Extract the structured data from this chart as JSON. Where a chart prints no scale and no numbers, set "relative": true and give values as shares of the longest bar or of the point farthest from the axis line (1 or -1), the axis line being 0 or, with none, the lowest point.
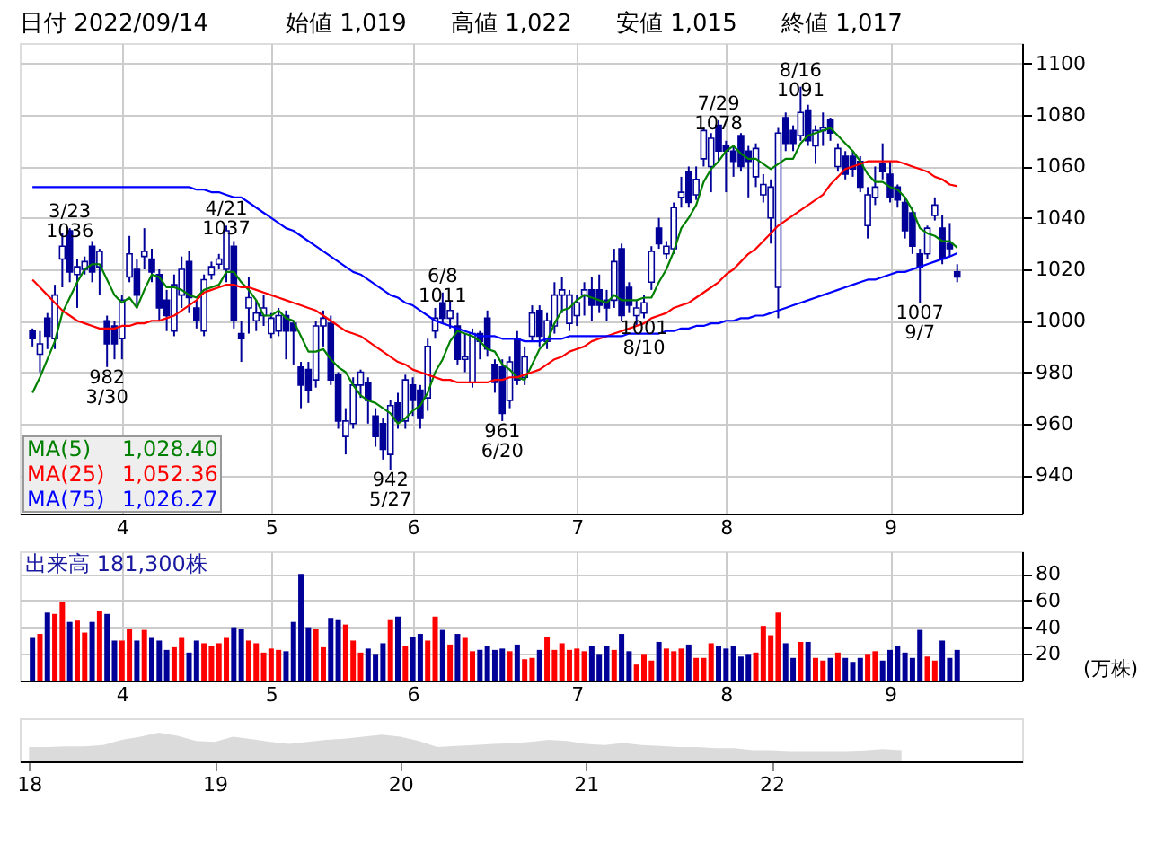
{
  "chart_data": [
    {
      "type": "candlestick",
      "color": "#000099",
      "grid": true,
      "legend": "bottom left",
      "ylim": [
        925,
        1108
      ],
      "yticks": [
        940,
        960,
        980,
        1000,
        1020,
        1040,
        1060,
        1080,
        1100
      ],
      "annotations": [
        "日付 2022/09/14",
        "始値 1,019",
        "高値 1,022",
        "安値 1,015",
        "終値 1,017",
        "1,028.40",
        "1,052.36",
        "1,026.27",
        {
          "text": "3/23\n1036",
          "y": 1036
        },
        {
          "text": "982\n3/30",
          "y": 982
        },
        {
          "text": "4/21\n1037",
          "y": 1037
        },
        {
          "text": "942\n5/27",
          "y": 942
        },
        {
          "text": "6/8\n1011",
          "y": 1011
        },
        {
          "text": "961\n6/20",
          "y": 961
        },
        {
          "text": "7/29\n1078",
          "y": 1078
        },
        {
          "text": "1001\n8/10",
          "y": 1001
        },
        {
          "text": "8/16\n1091",
          "y": 1091
        },
        {
          "text": "1007\n9/7",
          "y": 1007
        }
      ],
      "categories": [
        null,
        null,
        null,
        null,
        null,
        null,
        null,
        null,
        null,
        null,
        null,
        null,
        "4",
        null,
        null,
        null,
        null,
        null,
        null,
        null,
        null,
        null,
        null,
        null,
        null,
        null,
        null,
        null,
        null,
        null,
        null,
        null,
        "5",
        null,
        null,
        null,
        null,
        null,
        null,
        null,
        null,
        null,
        null,
        null,
        null,
        null,
        null,
        null,
        null,
        null,
        null,
        "6",
        null,
        null,
        null,
        null,
        null,
        null,
        null,
        null,
        null,
        null,
        null,
        null,
        null,
        null,
        null,
        null,
        null,
        null,
        null,
        null,
        null,
        "7",
        null,
        null,
        null,
        null,
        null,
        null,
        null,
        null,
        null,
        null,
        null,
        null,
        null,
        null,
        null,
        null,
        null,
        null,
        null,
        "8",
        null,
        null,
        null,
        null,
        null,
        null,
        null,
        null,
        null,
        null,
        null,
        null,
        null,
        null,
        null,
        null,
        null,
        null,
        null,
        null,
        null,
        "9",
        null,
        null,
        null,
        null,
        null,
        null,
        null,
        null,
        null
      ],
      "ohlc": [
        [
          996,
          997,
          990,
          993
        ],
        [
          987,
          996,
          980,
          991
        ],
        [
          1001,
          1003,
          989,
          994
        ],
        [
          993,
          1014,
          989,
          1010
        ],
        [
          1024,
          1034,
          1013,
          1029
        ],
        [
          1035,
          1036,
          1015,
          1019
        ],
        [
          1018,
          1024,
          1005,
          1021
        ],
        [
          1020,
          1025,
          1018,
          1023
        ],
        [
          1029,
          1031,
          1015,
          1019
        ],
        [
          1021,
          1028,
          1010,
          1027
        ],
        [
          1000,
          1002,
          982,
          991
        ],
        [
          998,
          1000,
          985,
          991
        ],
        [
          993,
          1010,
          985,
          1008
        ],
        [
          1017,
          1033,
          1015,
          1026
        ],
        [
          1020,
          1024,
          1005,
          1010
        ],
        [
          1025,
          1036,
          1020,
          1027
        ],
        [
          1024,
          1028,
          1015,
          1019
        ],
        [
          1018,
          1020,
          1000,
          1005
        ],
        [
          1008,
          1012,
          996,
          1002
        ],
        [
          996,
          1018,
          994,
          1014
        ],
        [
          1010,
          1025,
          1005,
          1020
        ],
        [
          1023,
          1027,
          1003,
          1009
        ],
        [
          1005,
          1008,
          997,
          1000
        ],
        [
          996,
          1018,
          994,
          1016
        ],
        [
          1018,
          1023,
          1016,
          1021
        ],
        [
          1022,
          1026,
          1020,
          1024
        ],
        [
          1020,
          1037,
          1015,
          1035
        ],
        [
          1029,
          1031,
          997,
          1000
        ],
        [
          995,
          1000,
          984,
          993
        ],
        [
          1005,
          1017,
          995,
          1009
        ],
        [
          1000,
          1008,
          996,
          1003
        ],
        [
          1002,
          1010,
          998,
          1005
        ],
        [
          995,
          1003,
          993,
          1001
        ],
        [
          996,
          1005,
          994,
          1002
        ],
        [
          1002,
          1004,
          985,
          996
        ],
        [
          999,
          1000,
          983,
          996
        ],
        [
          982,
          984,
          966,
          975
        ],
        [
          981,
          984,
          968,
          973
        ],
        [
          977,
          1000,
          974,
          998
        ],
        [
          998,
          1004,
          990,
          1001
        ],
        [
          999,
          1002,
          975,
          977
        ],
        [
          979,
          980,
          958,
          961
        ],
        [
          955,
          966,
          948,
          961
        ],
        [
          960,
          978,
          958,
          975
        ],
        [
          975,
          981,
          970,
          980
        ],
        [
          976,
          978,
          960,
          969
        ],
        [
          963,
          966,
          951,
          955
        ],
        [
          960,
          962,
          946,
          950
        ],
        [
          948,
          969,
          942,
          967
        ],
        [
          968,
          972,
          958,
          961
        ],
        [
          961,
          979,
          958,
          977
        ],
        [
          975,
          978,
          963,
          969
        ],
        [
          973,
          975,
          958,
          962
        ],
        [
          970,
          993,
          965,
          990
        ],
        [
          996,
          1005,
          993,
          1001
        ],
        [
          1007,
          1011,
          999,
          1001
        ],
        [
          1001,
          1008,
          997,
          1004
        ],
        [
          998,
          1003,
          983,
          985
        ],
        [
          985,
          995,
          980,
          986
        ],
        [
          976,
          997,
          974,
          995
        ],
        [
          995,
          996,
          985,
          992
        ],
        [
          1001,
          1004,
          986,
          989
        ],
        [
          983,
          985,
          972,
          976
        ],
        [
          982,
          985,
          961,
          964
        ],
        [
          969,
          986,
          966,
          984
        ],
        [
          993,
          996,
          975,
          977
        ],
        [
          978,
          990,
          975,
          986
        ],
        [
          994,
          1006,
          992,
          1003
        ],
        [
          1004,
          1006,
          990,
          994
        ],
        [
          992,
          1003,
          989,
          1000
        ],
        [
          998,
          1015,
          995,
          1010
        ],
        [
          1010,
          1017,
          1003,
          1012
        ],
        [
          999,
          1012,
          996,
          1010
        ],
        [
          1002,
          1010,
          998,
          1007
        ],
        [
          1010,
          1015,
          1002,
          1012
        ],
        [
          1012,
          1017,
          1000,
          1006
        ],
        [
          1012,
          1018,
          1003,
          1006
        ],
        [
          1008,
          1012,
          1000,
          1005
        ],
        [
          1008,
          1028,
          1005,
          1023
        ],
        [
          1028,
          1030,
          1000,
          1002
        ],
        [
          1013,
          1015,
          1003,
          1006
        ],
        [
          1002,
          1008,
          998,
          1005
        ],
        [
          1003,
          1010,
          1001,
          1007
        ],
        [
          1015,
          1029,
          1012,
          1027
        ],
        [
          1036,
          1040,
          1028,
          1030
        ],
        [
          1026,
          1031,
          1024,
          1029
        ],
        [
          1028,
          1046,
          1026,
          1044
        ],
        [
          1048,
          1056,
          1044,
          1050
        ],
        [
          1058,
          1060,
          1044,
          1046
        ],
        [
          1049,
          1060,
          1047,
          1055
        ],
        [
          1063,
          1075,
          1060,
          1074
        ],
        [
          1060,
          1073,
          1050,
          1071
        ],
        [
          1076,
          1078,
          1062,
          1066
        ],
        [
          1068,
          1070,
          1050,
          1066
        ],
        [
          1066,
          1068,
          1056,
          1062
        ],
        [
          1072,
          1073,
          1058,
          1060
        ],
        [
          1066,
          1068,
          1048,
          1062
        ],
        [
          1056,
          1069,
          1052,
          1067
        ],
        [
          1049,
          1057,
          1046,
          1053
        ],
        [
          1040,
          1055,
          1030,
          1052
        ],
        [
          1013,
          1075,
          1001,
          1073
        ],
        [
          1079,
          1081,
          1066,
          1069
        ],
        [
          1074,
          1076,
          1066,
          1069
        ],
        [
          1072,
          1091,
          1070,
          1081
        ],
        [
          1082,
          1084,
          1068,
          1070
        ],
        [
          1068,
          1076,
          1061,
          1074
        ],
        [
          1074,
          1081,
          1068,
          1075
        ],
        [
          1078,
          1079,
          1070,
          1073
        ],
        [
          1060,
          1069,
          1058,
          1067
        ],
        [
          1064,
          1066,
          1055,
          1057
        ],
        [
          1064,
          1066,
          1056,
          1059
        ],
        [
          1062,
          1064,
          1050,
          1052
        ],
        [
          1037,
          1052,
          1032,
          1049
        ],
        [
          1048,
          1060,
          1045,
          1052
        ],
        [
          1061,
          1069,
          1055,
          1058
        ],
        [
          1057,
          1062,
          1046,
          1048
        ],
        [
          1052,
          1053,
          1044,
          1047
        ],
        [
          1046,
          1048,
          1032,
          1035
        ],
        [
          1042,
          1044,
          1026,
          1029
        ],
        [
          1026,
          1028,
          1007,
          1021
        ],
        [
          1026,
          1037,
          1024,
          1036
        ],
        [
          1041,
          1048,
          1039,
          1045
        ],
        [
          1036,
          1041,
          1022,
          1024
        ],
        [
          1030,
          1038,
          1025,
          1028
        ],
        [
          1019,
          1022,
          1015,
          1017
        ]
      ],
      "series": [
        {
          "name": "MA(5)",
          "type": "line",
          "color": "#008000",
          "values": [
            972,
            978,
            985,
            992,
            1003,
            1009,
            1015,
            1020,
            1022,
            1022,
            1016,
            1010,
            1007,
            1009,
            1005,
            1012,
            1018,
            1017,
            1013,
            1013,
            1012,
            1010,
            1009,
            1012,
            1013,
            1014,
            1019,
            1019,
            1015,
            1012,
            1008,
            1002,
            1002,
            1004,
            1001,
            1000,
            994,
            988,
            988,
            989,
            985,
            982,
            980,
            975,
            971,
            969,
            968,
            966,
            964,
            960,
            962,
            965,
            967,
            972,
            980,
            985,
            992,
            996,
            995,
            994,
            992,
            989,
            988,
            983,
            981,
            978,
            977,
            983,
            989,
            992,
            999,
            1004,
            1005,
            1008,
            1010,
            1009,
            1008,
            1007,
            1010,
            1008,
            1008,
            1008,
            1009,
            1009,
            1015,
            1020,
            1027,
            1036,
            1040,
            1045,
            1054,
            1059,
            1062,
            1066,
            1068,
            1065,
            1063,
            1063,
            1061,
            1059,
            1061,
            1063,
            1063,
            1069,
            1072,
            1073,
            1074,
            1075,
            1072,
            1069,
            1066,
            1062,
            1057,
            1054,
            1054,
            1052,
            1051,
            1048,
            1043,
            1036,
            1034,
            1033,
            1031,
            1031,
            1028.4
          ]
        },
        {
          "name": "MA(25)",
          "type": "line",
          "color": "#ff0000",
          "values": [
            1016,
            1013,
            1010,
            1007,
            1004,
            1002,
            1000,
            999,
            998,
            997,
            997,
            997,
            998,
            998,
            999,
            999,
            1000,
            1000,
            1001,
            1002,
            1004,
            1006,
            1008,
            1011,
            1012,
            1013,
            1014,
            1014,
            1013,
            1013,
            1012,
            1011,
            1010,
            1009,
            1008,
            1007,
            1006,
            1005,
            1004,
            1002,
            1000,
            998,
            996,
            995,
            994,
            992,
            990,
            988,
            986,
            984,
            983,
            981,
            980,
            979,
            978,
            977,
            977,
            976,
            976,
            976,
            976,
            976,
            977,
            977,
            978,
            978,
            979,
            980,
            981,
            983,
            985,
            986,
            988,
            989,
            990,
            992,
            993,
            994,
            995,
            996,
            997,
            998,
            999,
            1001,
            1002,
            1003,
            1005,
            1006,
            1007,
            1009,
            1011,
            1013,
            1015,
            1018,
            1020,
            1023,
            1026,
            1028,
            1031,
            1034,
            1037,
            1039,
            1041,
            1043,
            1045,
            1047,
            1049,
            1053,
            1056,
            1059,
            1060,
            1061,
            1062,
            1062,
            1062,
            1062,
            1062,
            1061,
            1060,
            1059,
            1058,
            1056,
            1055,
            1053,
            1052.36
          ]
        },
        {
          "name": "MA(75)",
          "type": "line",
          "color": "#0000ff",
          "values": [
            1052,
            1052,
            1052,
            1052,
            1052,
            1052,
            1052,
            1052,
            1052,
            1052,
            1052,
            1052,
            1052,
            1052,
            1052,
            1052,
            1052,
            1052,
            1052,
            1052,
            1052,
            1052,
            1051,
            1051,
            1050,
            1050,
            1049,
            1048,
            1048,
            1046,
            1044,
            1042,
            1040,
            1038,
            1036,
            1035,
            1033,
            1031,
            1029,
            1027,
            1025,
            1023,
            1021,
            1019,
            1018,
            1016,
            1014,
            1012,
            1010,
            1009,
            1007,
            1006,
            1004,
            1002,
            1000,
            999,
            998,
            997,
            996,
            995,
            994,
            994,
            994,
            993,
            993,
            993,
            992,
            992,
            992,
            993,
            993,
            993,
            994,
            994,
            994,
            994,
            994,
            994,
            994,
            994,
            995,
            995,
            995,
            995,
            995,
            996,
            996,
            997,
            997,
            998,
            998,
            999,
            999,
            1000,
            1000,
            1001,
            1001,
            1002,
            1002,
            1003,
            1004,
            1005,
            1006,
            1007,
            1008,
            1009,
            1010,
            1011,
            1012,
            1013,
            1014,
            1015,
            1016,
            1016,
            1017,
            1018,
            1019,
            1019,
            1020,
            1021,
            1022,
            1023,
            1024,
            1025,
            1026.27
          ]
        }
      ]
    },
    {
      "type": "bar",
      "title": "出来高 181,300株",
      "ylabel": "(万株)",
      "grid": true,
      "ylim": [
        0,
        97
      ],
      "yticks": [
        20,
        40,
        60,
        80
      ],
      "categories": [
        null,
        null,
        null,
        null,
        null,
        null,
        null,
        null,
        null,
        null,
        null,
        null,
        "4",
        null,
        null,
        null,
        null,
        null,
        null,
        null,
        null,
        null,
        null,
        null,
        null,
        null,
        null,
        null,
        null,
        null,
        null,
        null,
        "5",
        null,
        null,
        null,
        null,
        null,
        null,
        null,
        null,
        null,
        null,
        null,
        null,
        null,
        null,
        null,
        null,
        null,
        null,
        "6",
        null,
        null,
        null,
        null,
        null,
        null,
        null,
        null,
        null,
        null,
        null,
        null,
        null,
        null,
        null,
        null,
        null,
        null,
        null,
        null,
        null,
        "7",
        null,
        null,
        null,
        null,
        null,
        null,
        null,
        null,
        null,
        null,
        null,
        null,
        null,
        null,
        null,
        null,
        null,
        null,
        null,
        "8",
        null,
        null,
        null,
        null,
        null,
        null,
        null,
        null,
        null,
        null,
        null,
        null,
        null,
        null,
        null,
        null,
        null,
        null,
        null,
        null,
        null,
        "9",
        null,
        null,
        null,
        null,
        null,
        null,
        null,
        null,
        null
      ],
      "values": [
        32,
        35,
        51,
        50,
        59,
        44,
        45,
        36,
        44,
        52,
        50,
        30,
        30,
        39,
        30,
        38,
        32,
        30,
        23,
        25,
        32,
        21,
        30,
        28,
        26,
        28,
        32,
        40,
        39,
        30,
        28,
        21,
        24,
        23,
        22,
        44,
        80,
        40,
        39,
        25,
        47,
        46,
        42,
        30,
        21,
        24,
        20,
        28,
        46,
        48,
        26,
        33,
        35,
        30,
        48,
        38,
        27,
        35,
        32,
        22,
        23,
        26,
        23,
        24,
        22,
        27,
        16,
        17,
        23,
        33,
        23,
        28,
        23,
        24,
        22,
        26,
        20,
        26,
        23,
        35,
        22,
        12,
        20,
        15,
        29,
        24,
        22,
        24,
        27,
        17,
        17,
        28,
        26,
        24,
        26,
        18,
        20,
        21,
        41,
        34,
        51,
        28,
        17,
        29,
        29,
        17,
        15,
        17,
        21,
        17,
        14,
        17,
        20,
        22,
        15,
        23,
        26,
        21,
        17,
        38,
        18,
        15,
        30,
        17,
        23
      ],
      "colors": [
        "#000099",
        "#ff0000",
        "#000099",
        "#ff0000",
        "#ff0000",
        "#000099",
        "#ff0000",
        "#ff0000",
        "#000099",
        "#ff0000",
        "#000099",
        "#000099",
        "#ff0000",
        "#ff0000",
        "#000099",
        "#ff0000",
        "#000099",
        "#000099",
        "#000099",
        "#ff0000",
        "#ff0000",
        "#000099",
        "#000099",
        "#ff0000",
        "#ff0000",
        "#ff0000",
        "#ff0000",
        "#000099",
        "#000099",
        "#ff0000",
        "#ff0000",
        "#ff0000",
        "#ff0000",
        "#ff0000",
        "#000099",
        "#000099",
        "#000099",
        "#000099",
        "#ff0000",
        "#ff0000",
        "#000099",
        "#000099",
        "#ff0000",
        "#ff0000",
        "#ff0000",
        "#000099",
        "#000099",
        "#000099",
        "#ff0000",
        "#000099",
        "#ff0000",
        "#000099",
        "#000099",
        "#ff0000",
        "#ff0000",
        "#000099",
        "#ff0000",
        "#000099",
        "#ff0000",
        "#ff0000",
        "#000099",
        "#000099",
        "#000099",
        "#000099",
        "#ff0000",
        "#000099",
        "#ff0000",
        "#ff0000",
        "#000099",
        "#ff0000",
        "#ff0000",
        "#ff0000",
        "#ff0000",
        "#ff0000",
        "#ff0000",
        "#000099",
        "#000099",
        "#000099",
        "#ff0000",
        "#000099",
        "#000099",
        "#ff0000",
        "#ff0000",
        "#ff0000",
        "#000099",
        "#ff0000",
        "#ff0000",
        "#ff0000",
        "#000099",
        "#ff0000",
        "#ff0000",
        "#ff0000",
        "#000099",
        "#000099",
        "#000099",
        "#000099",
        "#000099",
        "#ff0000",
        "#ff0000",
        "#ff0000",
        "#ff0000",
        "#000099",
        "#000099",
        "#ff0000",
        "#000099",
        "#ff0000",
        "#ff0000",
        "#000099",
        "#ff0000",
        "#000099",
        "#000099",
        "#000099",
        "#ff0000",
        "#ff0000",
        "#000099",
        "#000099",
        "#000099",
        "#000099",
        "#000099",
        "#000099",
        "#ff0000",
        "#ff0000",
        "#000099",
        "#000099",
        "#000099"
      ]
    },
    {
      "type": "area",
      "relative": true,
      "color": "#999999",
      "tick_labels": "x",
      "categories": [
        "18",
        null,
        null,
        null,
        null,
        null,
        null,
        null,
        null,
        null,
        "19",
        null,
        null,
        null,
        null,
        null,
        null,
        null,
        null,
        null,
        "20",
        null,
        null,
        null,
        null,
        null,
        null,
        null,
        null,
        null,
        "21",
        null,
        null,
        null,
        null,
        null,
        null,
        null,
        null,
        null,
        "22",
        null,
        null,
        null,
        null,
        null,
        null,
        null
      ],
      "values": [
        0.5,
        0.5,
        0.52,
        0.52,
        0.57,
        0.75,
        0.86,
        1,
        0.89,
        0.71,
        0.68,
        0.86,
        0.77,
        0.68,
        0.61,
        0.68,
        0.75,
        0.79,
        0.86,
        0.93,
        0.86,
        0.71,
        0.5,
        0.54,
        0.57,
        0.61,
        0.63,
        0.68,
        0.75,
        0.71,
        0.61,
        0.57,
        0.64,
        0.57,
        0.54,
        0.5,
        0.5,
        0.46,
        0.46,
        0.39,
        0.39,
        0.36,
        0.36,
        0.36,
        0.36,
        0.38,
        0.43,
        0.39
      ]
    }
  ]
}
